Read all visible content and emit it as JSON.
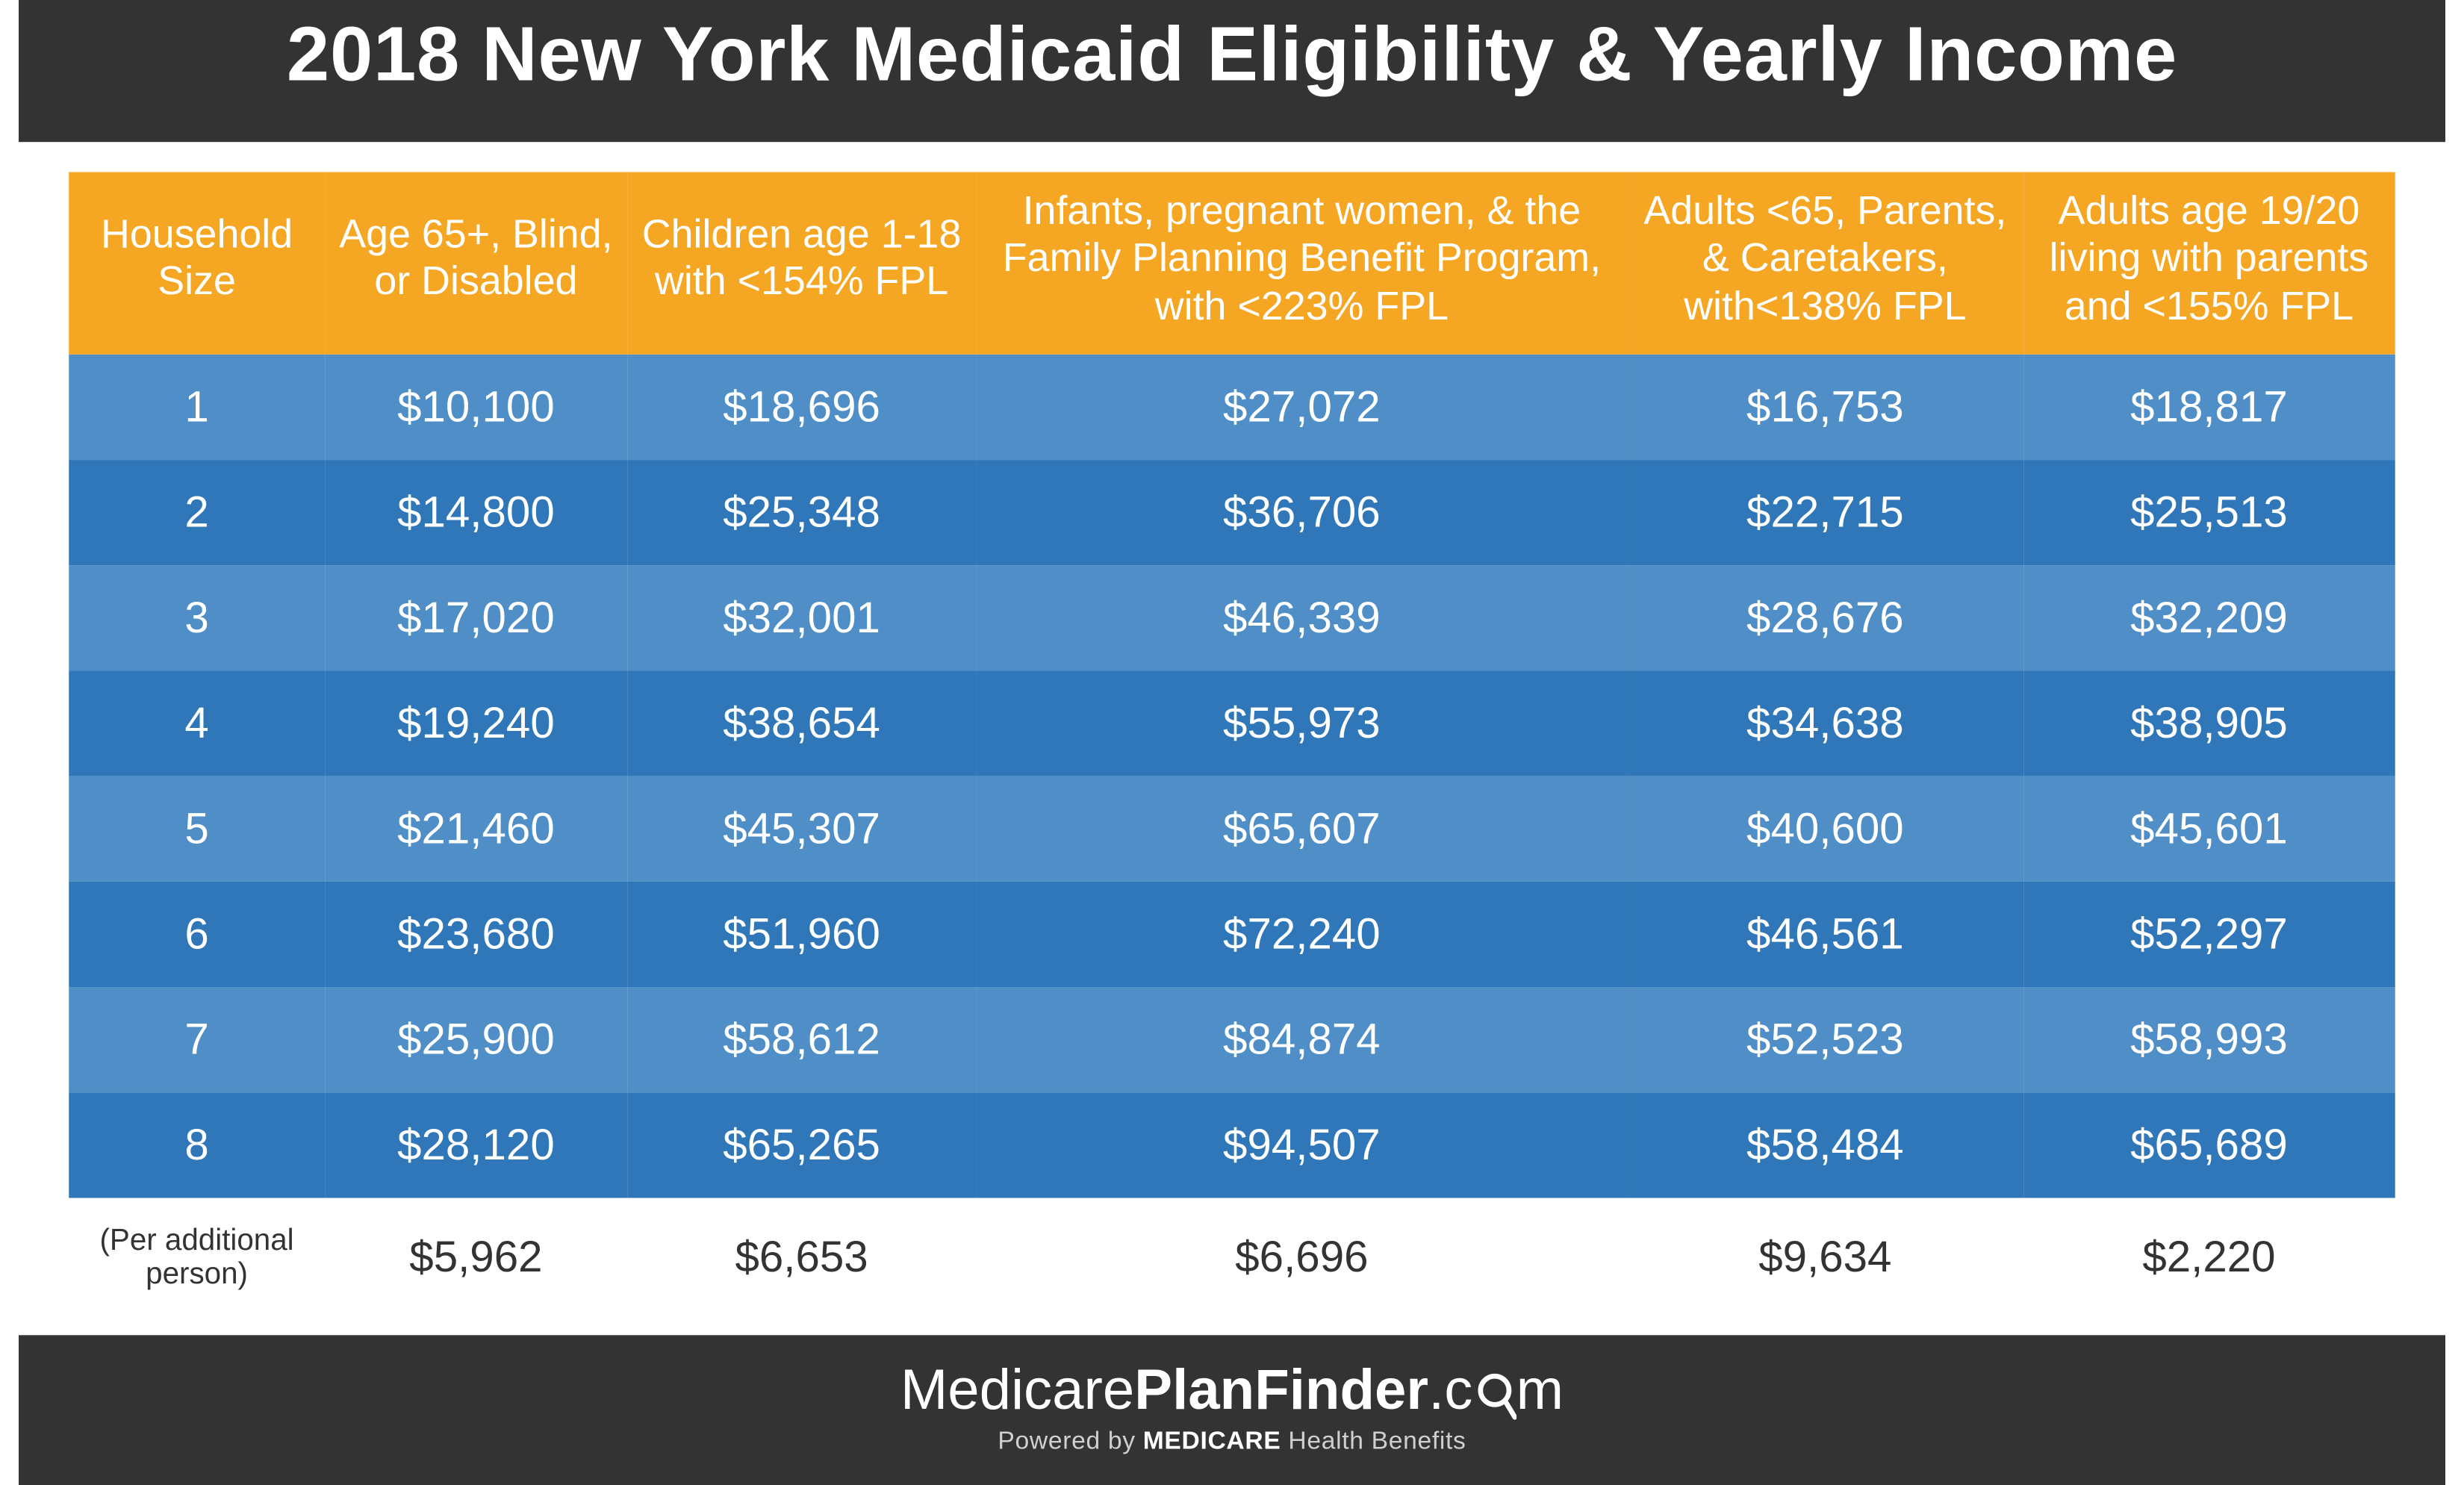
{
  "title": "2018 New York Medicaid Eligibility & Yearly Income",
  "table": {
    "type": "table",
    "header_bg": "#f5a623",
    "row_odd_bg": "#4f8ec6",
    "row_even_bg": "#2f77b8",
    "text_color": "#ffffff",
    "header_fontsize": 24,
    "cell_fontsize": 26,
    "col_widths_pct": [
      11,
      13,
      15,
      28,
      17,
      16
    ],
    "columns": [
      "Household Size",
      "Age 65+, Blind, or Disabled",
      "Children age 1-18 with <154% FPL",
      "Infants, pregnant women, & the Family Planning Benefit Program, with <223% FPL",
      "Adults <65, Parents, & Caretakers, with<138% FPL",
      "Adults age 19/20 living with parents and <155% FPL"
    ],
    "rows": [
      [
        "1",
        "$10,100",
        "$18,696",
        "$27,072",
        "$16,753",
        "$18,817"
      ],
      [
        "2",
        "$14,800",
        "$25,348",
        "$36,706",
        "$22,715",
        "$25,513"
      ],
      [
        "3",
        "$17,020",
        "$32,001",
        "$46,339",
        "$28,676",
        "$32,209"
      ],
      [
        "4",
        "$19,240",
        "$38,654",
        "$55,973",
        "$34,638",
        "$38,905"
      ],
      [
        "5",
        "$21,460",
        "$45,307",
        "$65,607",
        "$40,600",
        "$45,601"
      ],
      [
        "6",
        "$23,680",
        "$51,960",
        "$72,240",
        "$46,561",
        "$52,297"
      ],
      [
        "7",
        "$25,900",
        "$58,612",
        "$84,874",
        "$52,523",
        "$58,993"
      ],
      [
        "8",
        "$28,120",
        "$65,265",
        "$94,507",
        "$58,484",
        "$65,689"
      ]
    ],
    "extra_row_label": "(Per additional person)",
    "extra_row": [
      "$5,962",
      "$6,653",
      "$6,696",
      "$9,634",
      "$2,220"
    ]
  },
  "footer": {
    "brand_plain1": "Medicare",
    "brand_bold": "PlanFinder",
    "brand_plain2": ".c",
    "brand_plain3": "m",
    "powered_prefix": "Powered by ",
    "powered_bold": "MEDICARE",
    "powered_suffix": " Health Benefits"
  },
  "colors": {
    "title_bg": "#333333",
    "footer_bg": "#333333",
    "page_bg": "#ffffff",
    "accent_orange": "#f5a623",
    "row_light": "#4f8ec6",
    "row_dark": "#2f77b8"
  }
}
